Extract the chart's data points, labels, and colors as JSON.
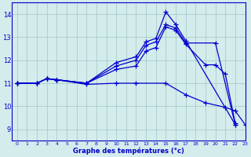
{
  "background_color": "#d4ecec",
  "grid_color": "#aacccc",
  "line_color": "#0000cc",
  "xlabel": "Graphe des températures (°c)",
  "xlabel_color": "#0000cc",
  "xlim": [
    -0.5,
    23
  ],
  "ylim": [
    8.5,
    14.5
  ],
  "yticks": [
    9,
    10,
    11,
    12,
    13,
    14
  ],
  "xticks": [
    0,
    1,
    2,
    3,
    4,
    5,
    6,
    7,
    8,
    9,
    10,
    11,
    12,
    13,
    14,
    15,
    16,
    17,
    18,
    19,
    20,
    21,
    22,
    23
  ],
  "series": [
    {
      "x": [
        0,
        2,
        3,
        4,
        7,
        10,
        12,
        13,
        14,
        15,
        16,
        17,
        22
      ],
      "y": [
        11.0,
        11.0,
        11.2,
        11.15,
        11.0,
        11.9,
        12.15,
        12.8,
        12.95,
        14.1,
        13.55,
        12.85,
        9.2
      ]
    },
    {
      "x": [
        0,
        2,
        3,
        4,
        7,
        10,
        12,
        13,
        14,
        15,
        16,
        17,
        20,
        22
      ],
      "y": [
        11.0,
        11.0,
        11.2,
        11.15,
        11.0,
        11.75,
        12.0,
        12.65,
        12.8,
        13.55,
        13.4,
        12.75,
        12.75,
        9.2
      ]
    },
    {
      "x": [
        0,
        2,
        3,
        4,
        7,
        10,
        12,
        13,
        14,
        15,
        16,
        17,
        19,
        20,
        21,
        22
      ],
      "y": [
        11.0,
        11.0,
        11.2,
        11.15,
        11.0,
        11.6,
        11.75,
        12.4,
        12.55,
        13.45,
        13.3,
        12.7,
        11.8,
        11.8,
        11.4,
        9.25
      ]
    },
    {
      "x": [
        0,
        2,
        3,
        4,
        7,
        10,
        12,
        15,
        17,
        19,
        21,
        22,
        23
      ],
      "y": [
        11.0,
        11.0,
        11.2,
        11.15,
        10.95,
        11.0,
        11.0,
        11.0,
        10.5,
        10.15,
        9.95,
        9.8,
        9.2
      ]
    }
  ]
}
